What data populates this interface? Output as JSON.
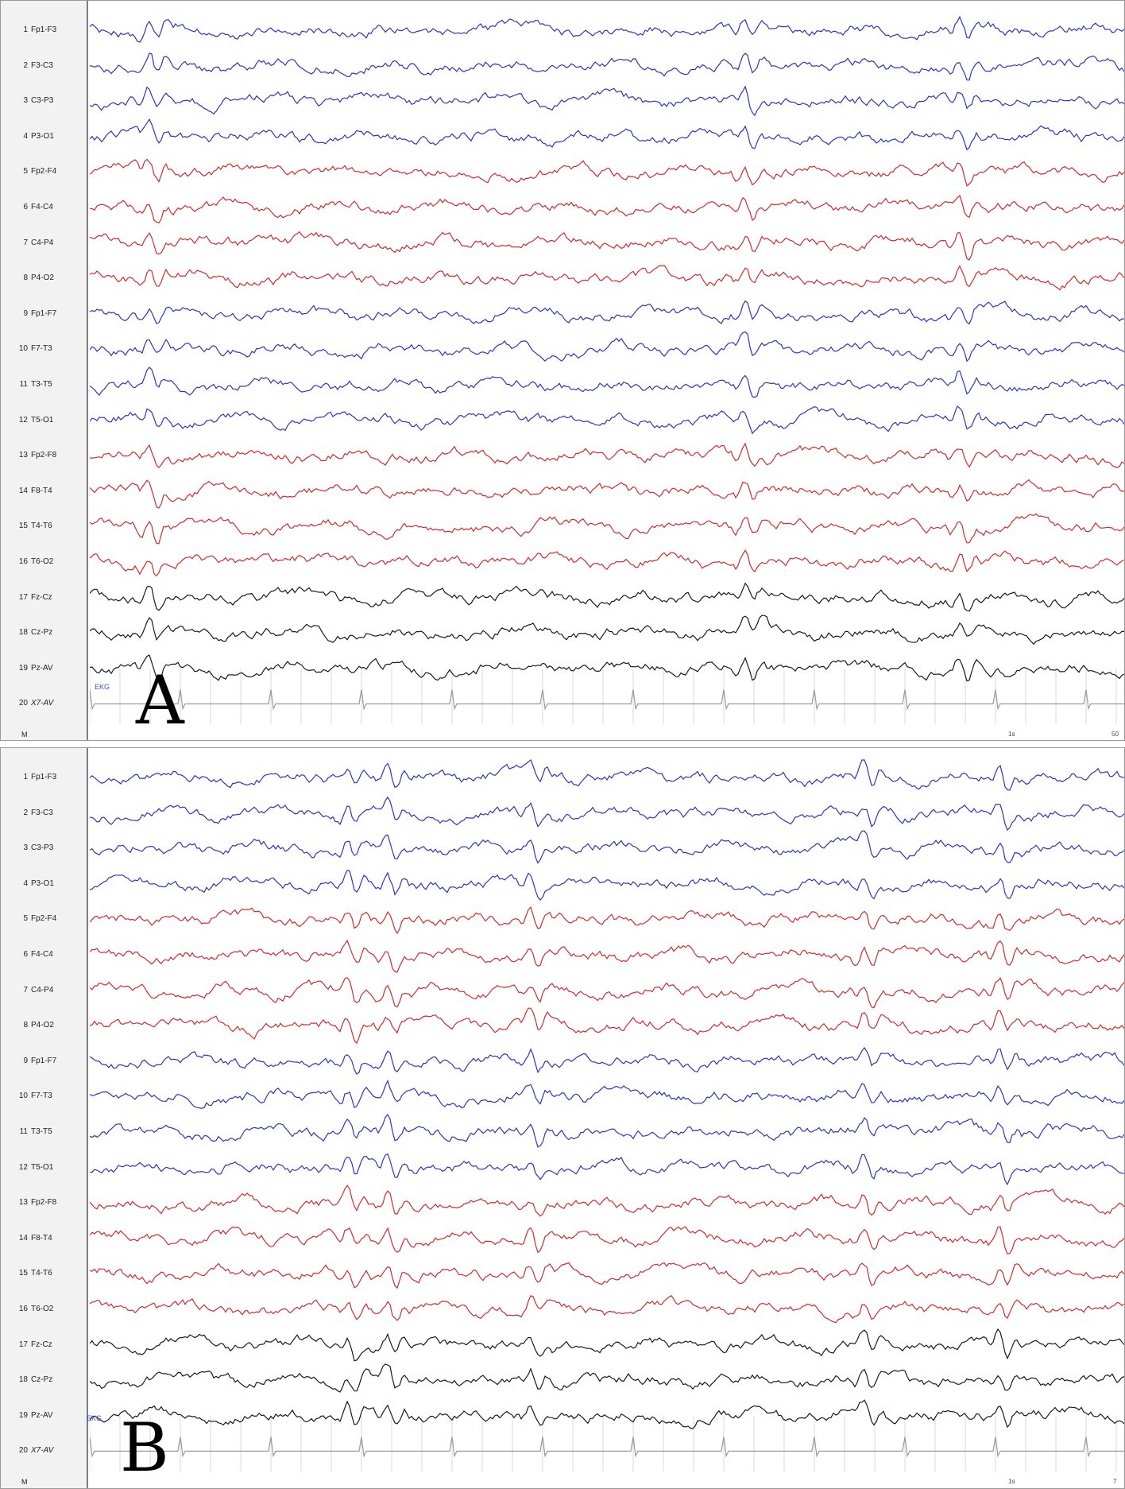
{
  "panels": [
    {
      "id": "A",
      "letter": "A",
      "ekg_tag": "EKG",
      "marker_label": "M",
      "scale_left": "1s",
      "scale_right": "50",
      "channels": [
        {
          "num": "1",
          "name": "Fp1-F3",
          "color": "#2a35c8"
        },
        {
          "num": "2",
          "name": "F3-C3",
          "color": "#2a35c8"
        },
        {
          "num": "3",
          "name": "C3-P3",
          "color": "#2a35c8"
        },
        {
          "num": "4",
          "name": "P3-O1",
          "color": "#2a35c8"
        },
        {
          "num": "5",
          "name": "Fp2-F4",
          "color": "#d42a2a"
        },
        {
          "num": "6",
          "name": "F4-C4",
          "color": "#d42a2a"
        },
        {
          "num": "7",
          "name": "C4-P4",
          "color": "#d42a2a"
        },
        {
          "num": "8",
          "name": "P4-O2",
          "color": "#d42a2a"
        },
        {
          "num": "9",
          "name": "Fp1-F7",
          "color": "#2a35c8"
        },
        {
          "num": "10",
          "name": "F7-T3",
          "color": "#2a35c8"
        },
        {
          "num": "11",
          "name": "T3-T5",
          "color": "#2a35c8"
        },
        {
          "num": "12",
          "name": "T5-O1",
          "color": "#2a35c8"
        },
        {
          "num": "13",
          "name": "Fp2-F8",
          "color": "#d42a2a"
        },
        {
          "num": "14",
          "name": "F8-T4",
          "color": "#d42a2a"
        },
        {
          "num": "15",
          "name": "T4-T6",
          "color": "#d42a2a"
        },
        {
          "num": "16",
          "name": "T6-O2",
          "color": "#d42a2a"
        },
        {
          "num": "17",
          "name": "Fz-Cz",
          "color": "#1a1a1a"
        },
        {
          "num": "18",
          "name": "Cz-Pz",
          "color": "#1a1a1a"
        },
        {
          "num": "19",
          "name": "Pz-AV",
          "color": "#1a1a1a"
        },
        {
          "num": "20",
          "name": "X7-AV",
          "color": "#9a9a9a"
        }
      ]
    },
    {
      "id": "B",
      "letter": "B",
      "ekg_tag": "EKG",
      "marker_label": "M",
      "scale_left": "1s",
      "scale_right": "7",
      "channels": [
        {
          "num": "1",
          "name": "Fp1-F3",
          "color": "#2a35c8"
        },
        {
          "num": "2",
          "name": "F3-C3",
          "color": "#2a35c8"
        },
        {
          "num": "3",
          "name": "C3-P3",
          "color": "#2a35c8"
        },
        {
          "num": "4",
          "name": "P3-O1",
          "color": "#2a35c8"
        },
        {
          "num": "5",
          "name": "Fp2-F4",
          "color": "#d42a2a"
        },
        {
          "num": "6",
          "name": "F4-C4",
          "color": "#d42a2a"
        },
        {
          "num": "7",
          "name": "C4-P4",
          "color": "#d42a2a"
        },
        {
          "num": "8",
          "name": "P4-O2",
          "color": "#d42a2a"
        },
        {
          "num": "9",
          "name": "Fp1-F7",
          "color": "#2a35c8"
        },
        {
          "num": "10",
          "name": "F7-T3",
          "color": "#2a35c8"
        },
        {
          "num": "11",
          "name": "T3-T5",
          "color": "#2a35c8"
        },
        {
          "num": "12",
          "name": "T5-O1",
          "color": "#2a35c8"
        },
        {
          "num": "13",
          "name": "Fp2-F8",
          "color": "#d42a2a"
        },
        {
          "num": "14",
          "name": "F8-T4",
          "color": "#d42a2a"
        },
        {
          "num": "15",
          "name": "T4-T6",
          "color": "#d42a2a"
        },
        {
          "num": "16",
          "name": "T6-O2",
          "color": "#d42a2a"
        },
        {
          "num": "17",
          "name": "Fz-Cz",
          "color": "#1a1a1a"
        },
        {
          "num": "18",
          "name": "Cz-Pz",
          "color": "#1a1a1a"
        },
        {
          "num": "19",
          "name": "Pz-AV",
          "color": "#1a1a1a"
        },
        {
          "num": "20",
          "name": "X7-AV",
          "color": "#9a9a9a"
        }
      ]
    }
  ]
}
